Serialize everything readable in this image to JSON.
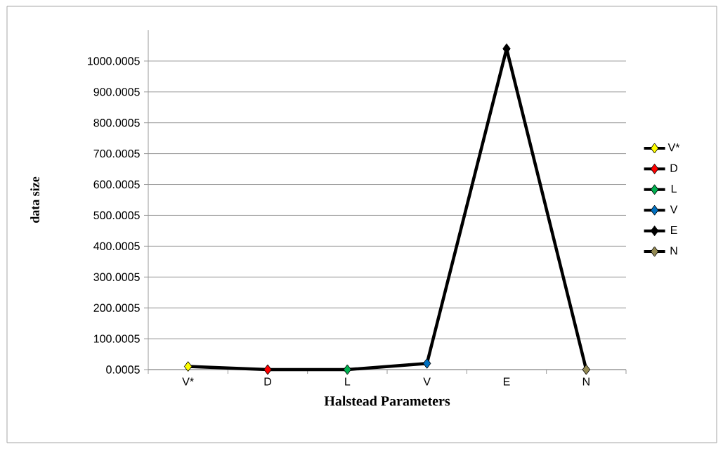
{
  "chart_data": {
    "type": "line",
    "xlabel": "Halstead Parameters",
    "ylabel": "data size",
    "categories": [
      "V*",
      "D",
      "L",
      "V",
      "E",
      "N"
    ],
    "series": [
      {
        "color": "#000000",
        "marker": "none",
        "values": [
          10,
          0.0005,
          0.0005,
          20,
          1040,
          0.0005
        ]
      },
      {
        "type": "scatter",
        "name": "V*",
        "color": "#ffff00",
        "x": [
          "V*"
        ],
        "values": [
          10
        ]
      },
      {
        "type": "scatter",
        "name": "D",
        "color": "#ff0000",
        "x": [
          "D"
        ],
        "values": [
          0.0005
        ]
      },
      {
        "type": "scatter",
        "name": "L",
        "color": "#00b050",
        "x": [
          "L"
        ],
        "values": [
          0.0005
        ]
      },
      {
        "type": "scatter",
        "name": "V",
        "color": "#0070c0",
        "x": [
          "V"
        ],
        "values": [
          20
        ]
      },
      {
        "type": "scatter",
        "name": "E",
        "color": "#000000",
        "x": [
          "E"
        ],
        "values": [
          1040
        ]
      },
      {
        "type": "scatter",
        "name": "N",
        "color": "#948a54",
        "x": [
          "N"
        ],
        "values": [
          0.0005
        ]
      }
    ],
    "ylim": [
      0.0005,
      1100.0005
    ],
    "yticks": [
      0.0005,
      100.0005,
      200.0005,
      300.0005,
      400.0005,
      500.0005,
      600.0005,
      700.0005,
      800.0005,
      900.0005,
      1000.0005
    ],
    "grid": "y",
    "legend": "right",
    "marker": "diamond",
    "line_style": "solid"
  }
}
